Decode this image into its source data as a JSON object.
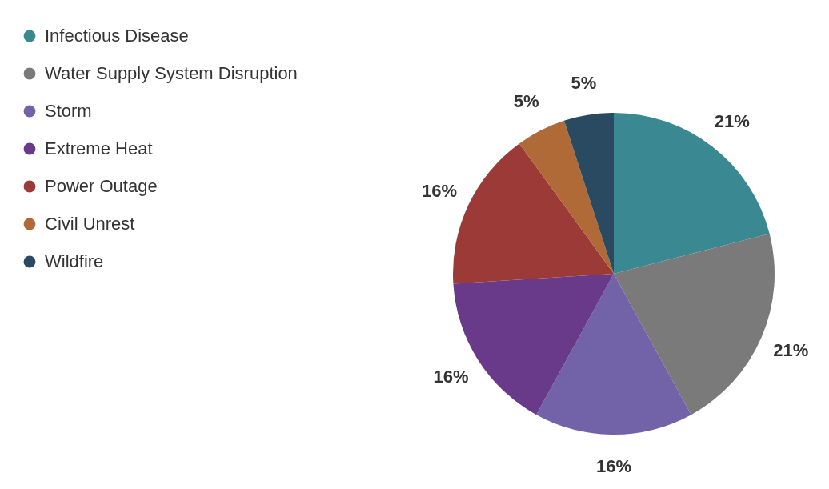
{
  "chart_data": {
    "type": "pie",
    "categories": [
      "Infectious Disease",
      "Water Supply System Disruption",
      "Storm",
      "Extreme Heat",
      "Power Outage",
      "Civil Unrest",
      "Wildfire"
    ],
    "values": [
      21,
      21,
      16,
      16,
      16,
      5,
      5
    ],
    "colors": [
      "#3a8891",
      "#7a7a7a",
      "#7263a8",
      "#6a3a8a",
      "#9b3a36",
      "#b06a38",
      "#2a4a62"
    ],
    "value_labels": [
      "21%",
      "21%",
      "16%",
      "16%",
      "16%",
      "5%",
      "5%"
    ],
    "legend": "top left"
  }
}
